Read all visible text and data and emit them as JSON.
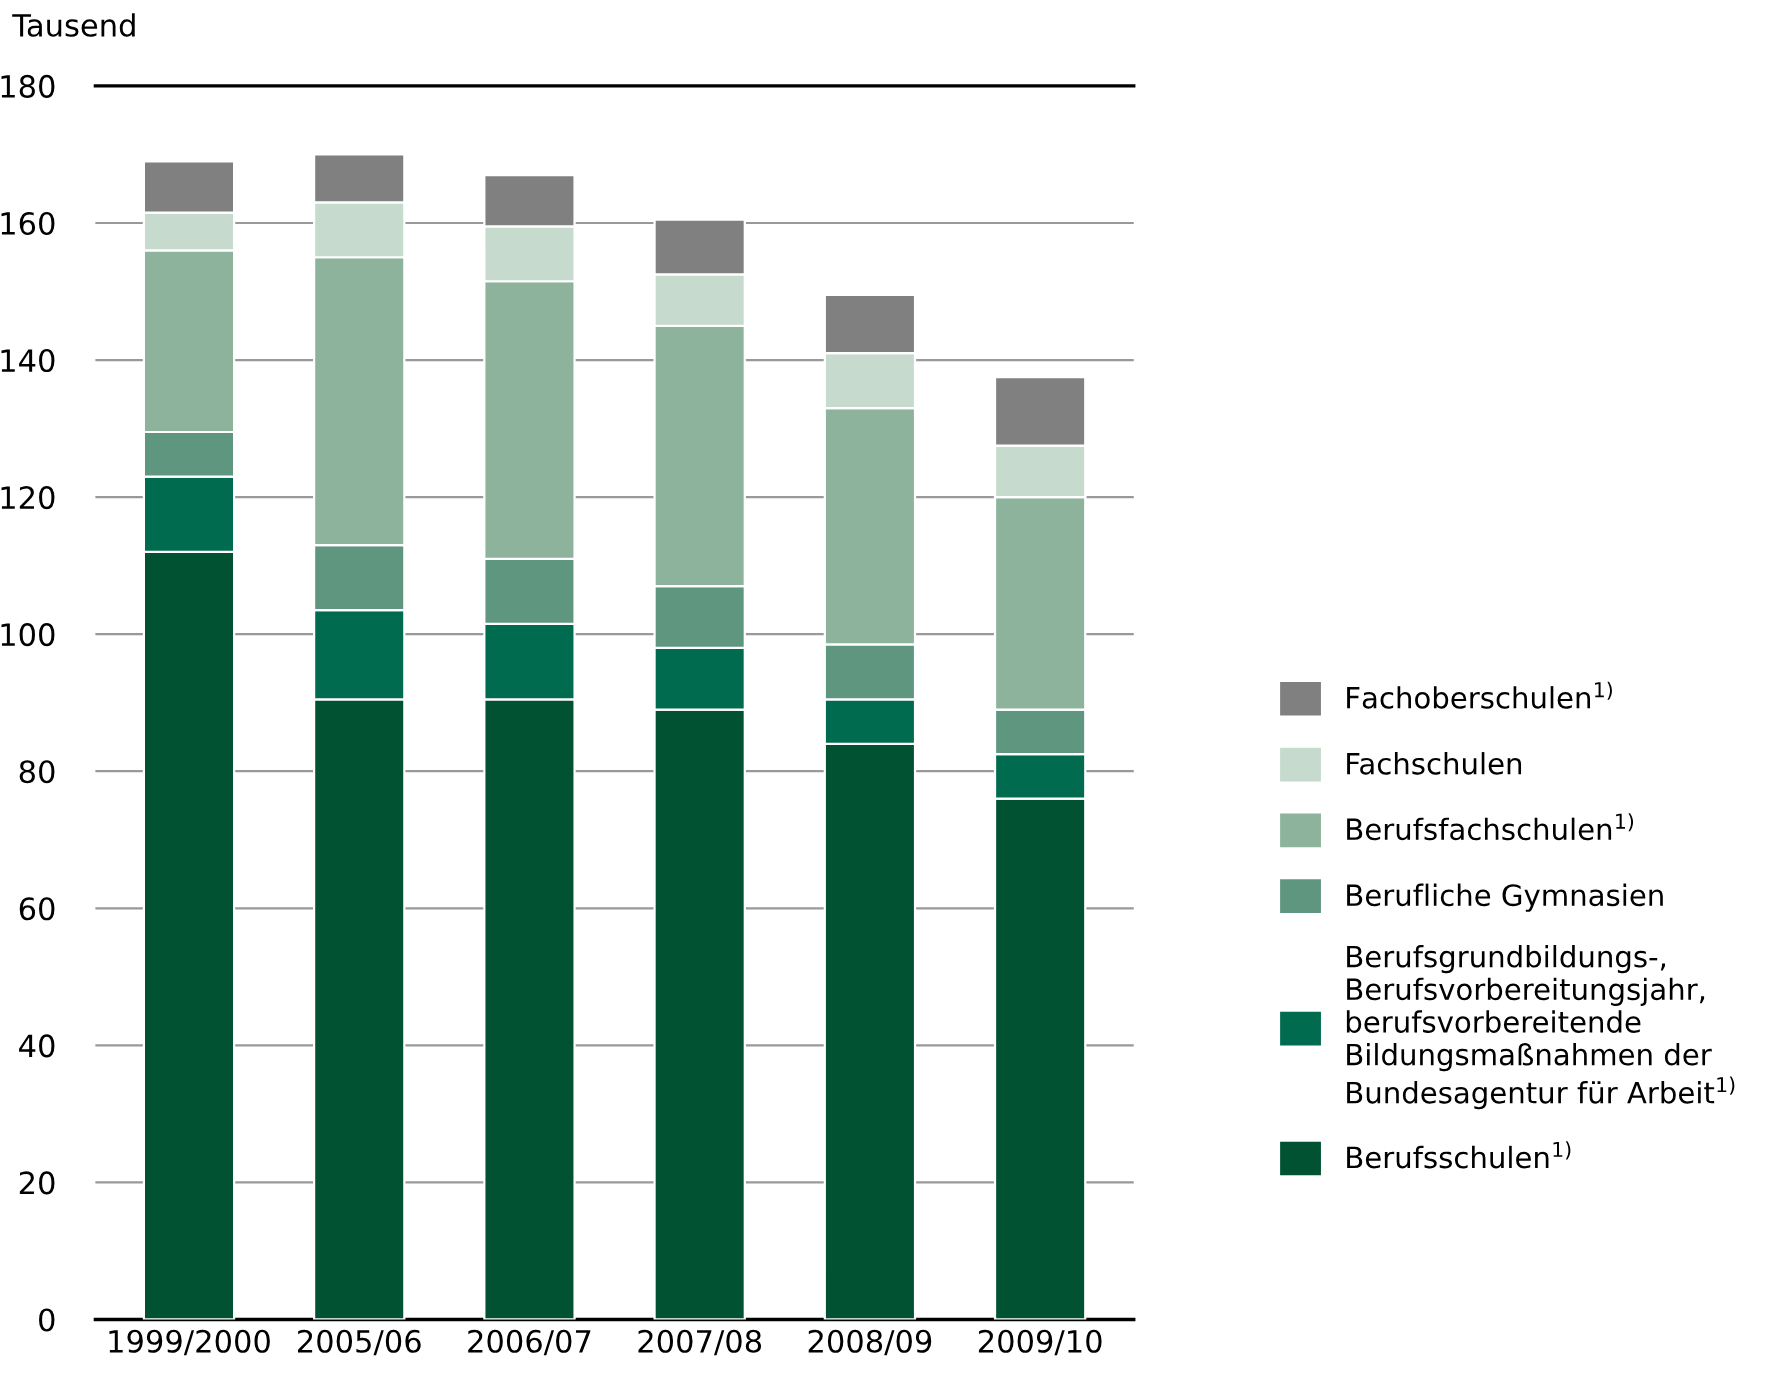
{
  "chart_data": {
    "type": "bar",
    "stacked": true,
    "ylabel": "Tausend",
    "categories": [
      "1999/2000",
      "2005/06",
      "2006/07",
      "2007/08",
      "2008/09",
      "2009/10"
    ],
    "series": [
      {
        "name": "Berufsschulen$^{1)}$",
        "color": "#005233",
        "values": [
          112,
          90.5,
          90.5,
          89,
          84,
          76
        ]
      },
      {
        "name": "Berufsgrundbildungs-,\nBerufsvorbereitungsjahr,\nberufsvorbereitende\nBildungsmaßnahmen der\nBundesagentur für Arbeit$^{1)}$",
        "color": "#006b4f",
        "values": [
          11,
          13,
          11,
          9,
          6.5,
          6.5
        ]
      },
      {
        "name": "Berufliche Gymnasien",
        "color": "#5e9680",
        "values": [
          6.5,
          9.5,
          9.5,
          9,
          8,
          6.5
        ]
      },
      {
        "name": "Berufsfachschulen$^{1)}$",
        "color": "#8db39c",
        "values": [
          26.5,
          42,
          40.5,
          38,
          34.5,
          31
        ]
      },
      {
        "name": "Fachschulen",
        "color": "#c6dacd",
        "values": [
          5.5,
          8,
          8,
          7.5,
          8,
          7.5
        ]
      },
      {
        "name": "Fachoberschulen$^{1)}$",
        "color": "#808080",
        "values": [
          7.5,
          7,
          7.5,
          8,
          8.5,
          10
        ]
      }
    ],
    "ylim": [
      0,
      180
    ],
    "yticks": [
      0,
      20,
      40,
      60,
      80,
      100,
      120,
      140,
      160,
      180
    ],
    "grid": "y",
    "legend": "right"
  }
}
